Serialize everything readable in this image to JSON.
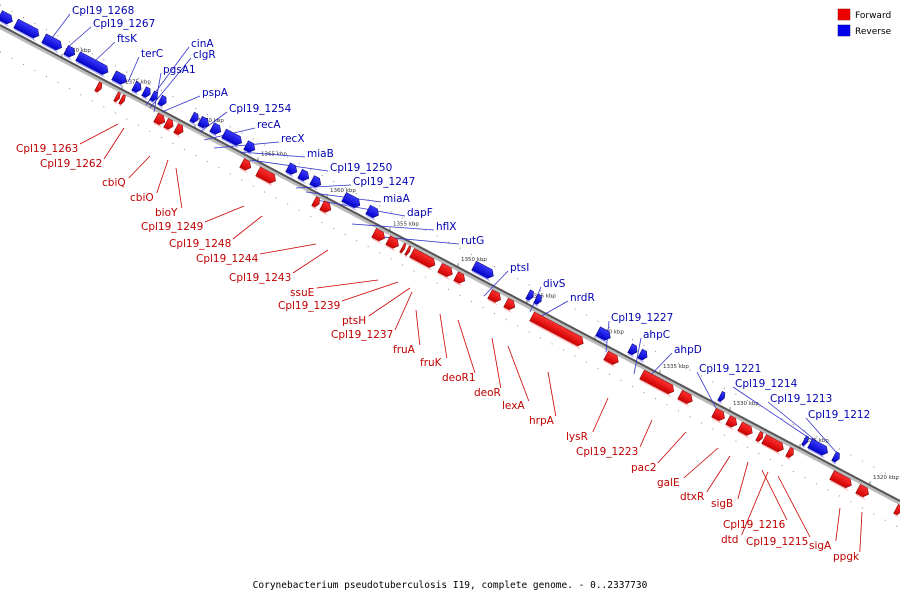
{
  "caption": "Corynebacterium pseudotuberculosis I19, complete genome. - 0..2337730",
  "legend": [
    {
      "label": "Forward",
      "color": "#ee0000"
    },
    {
      "label": "Reverse",
      "color": "#0000ee"
    }
  ],
  "ticks": [
    "1380 kbp",
    "1375 kbp",
    "1370 kbp",
    "1365 kbp",
    "1360 kbp",
    "1355 kbp",
    "1350 kbp",
    "1345 kbp",
    "1340 kbp",
    "1335 kbp",
    "1330 kbp",
    "1325 kbp",
    "1320 kbp"
  ],
  "reverse_labels": [
    "Cpl19_1268",
    "Cpl19_1267",
    "ftsK",
    "cinA",
    "terC",
    "clgR",
    "pgsA1",
    "pspA",
    "Cpl19_1254",
    "recA",
    "recX",
    "miaB",
    "Cpl19_1250",
    "Cpl19_1247",
    "miaA",
    "dapF",
    "hflX",
    "rutG",
    "ptsI",
    "divS",
    "nrdR",
    "Cpl19_1227",
    "ahpC",
    "ahpD",
    "Cpl19_1221",
    "Cpl19_1214",
    "Cpl19_1213",
    "Cpl19_1212"
  ],
  "forward_labels": [
    "Cpl19_1263",
    "Cpl19_1262",
    "cbiQ",
    "cbiO",
    "bioY",
    "Cpl19_1249",
    "Cpl19_1248",
    "Cpl19_1244",
    "Cpl19_1243",
    "ssuE",
    "Cpl19_1239",
    "ptsH",
    "Cpl19_1237",
    "fruA",
    "fruK",
    "deoR1",
    "deoR",
    "lexA",
    "hrpA",
    "lysR",
    "Cpl19_1223",
    "pac2",
    "galE",
    "dtxR",
    "sigB",
    "Cpl19_1216",
    "dtd",
    "Cpl19_1215",
    "sigA",
    "ppgk"
  ]
}
